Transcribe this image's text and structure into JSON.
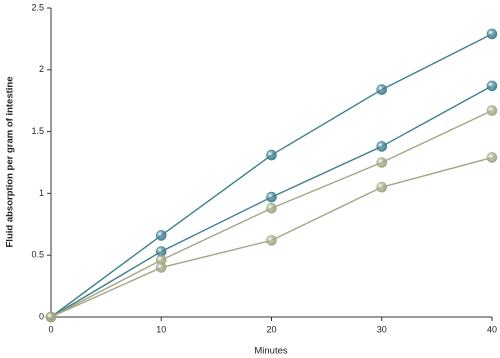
{
  "chart_data": {
    "type": "line",
    "x_label": "Minutes",
    "y_label": "Fluid absorption per gram of intestine",
    "x": [
      0,
      10,
      20,
      30,
      40
    ],
    "series": [
      {
        "color": "#3f7f90",
        "values": [
          0,
          0.66,
          1.31,
          1.84,
          2.29
        ]
      },
      {
        "color": "#3f7f90",
        "values": [
          0,
          0.53,
          0.97,
          1.38,
          1.87
        ]
      },
      {
        "color": "#a3a585",
        "values": [
          0,
          0.46,
          0.88,
          1.25,
          1.67
        ]
      },
      {
        "color": "#a3a585",
        "values": [
          0,
          0.4,
          0.62,
          1.05,
          1.29
        ]
      }
    ],
    "xlim": [
      0,
      40
    ],
    "xticks": [
      0,
      10,
      20,
      30,
      40
    ],
    "ylim": [
      0,
      2.5
    ],
    "yticks": [
      0,
      0.5,
      1,
      1.5,
      2,
      2.5
    ],
    "grid": false
  }
}
